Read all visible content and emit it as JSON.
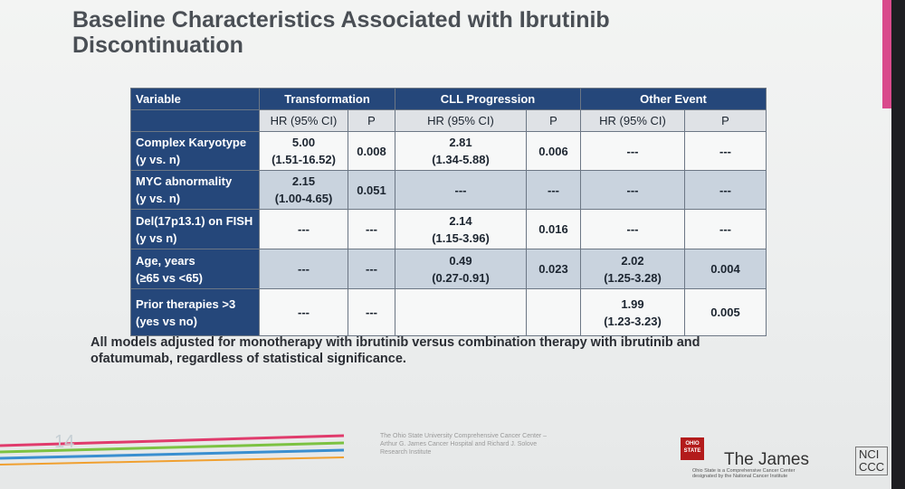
{
  "header": {
    "title": "Baseline Characteristics Associated with Ibrutinib\nDiscontinuation"
  },
  "table": {
    "columns": [
      "Variable",
      "Transformation",
      "CLL Progression",
      "Other Event"
    ],
    "subheaders": [
      "HR (95% CI)",
      "P",
      "HR (95% CI)",
      "P",
      "HR (95% CI)",
      "P"
    ],
    "rows": [
      [
        "Complex Karyotype\n(y vs. n)",
        "5.00\n(1.51-16.52)",
        "0.008",
        "2.81\n(1.34-5.88)",
        "0.006",
        "---",
        "---"
      ],
      [
        "MYC abnormality\n(y vs. n)",
        "2.15\n(1.00-4.65)",
        "0.051",
        "---",
        "---",
        "---",
        "---"
      ],
      [
        "Del(17p13.1) on FISH\n(y vs n)",
        "---",
        "---",
        "2.14\n(1.15-3.96)",
        "0.016",
        "---",
        "---"
      ],
      [
        "Age, years\n(≥65 vs <65)",
        "---",
        "---",
        "0.49\n(0.27-0.91)",
        "0.023",
        "2.02\n(1.25-3.28)",
        "0.004"
      ],
      [
        "Prior therapies >3\n(yes vs no)",
        "---",
        "---",
        null,
        null,
        "1.99\n(1.23-3.23)",
        "0.005"
      ]
    ]
  },
  "footnote": "All models adjusted for monotherapy with ibrutinib versus combination therapy with ibrutinib and\nofatumumab, regardless of statistical significance.",
  "footer": {
    "slide_number": "14",
    "institution": "The Ohio State University Comprehensive Cancer Center –\nArthur G. James Cancer Hospital and Richard J. Solove\nResearch Institute",
    "logo_badge": "OHIO\nSTATE",
    "logo_name": "The James",
    "logo_tagline": "Ohio State is a Comprehensive Cancer Center\ndesignated by the National Cancer Institute",
    "nci": "NCI\nCCC"
  }
}
